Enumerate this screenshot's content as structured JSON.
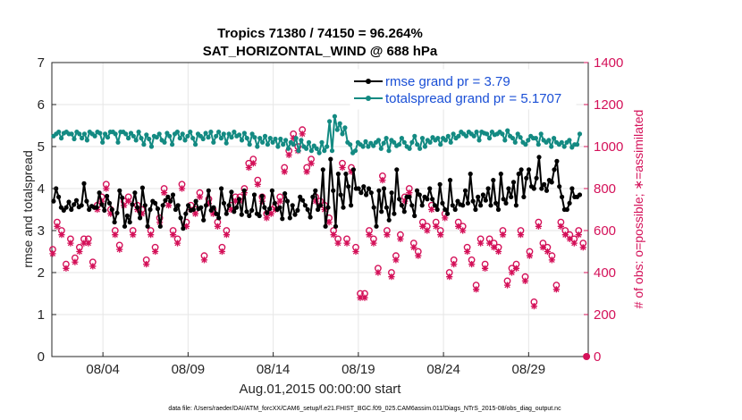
{
  "chart_data": {
    "type": "line",
    "title": "Tropics 71380 / 74150 = 96.264%",
    "subtitle": "SAT_HORIZONTAL_WIND @ 688 hPa",
    "xlabel": "Aug.01,2015 00:00:00 start",
    "ylabel": "rmse and totalspread",
    "ylabel_right": "# of obs: o=possible; ∗=assimilated",
    "x_ticks": [
      "08/04",
      "08/09",
      "08/14",
      "08/19",
      "08/24",
      "08/29"
    ],
    "x_tick_values": [
      3,
      8,
      13,
      18,
      23,
      28
    ],
    "xlim": [
      0,
      31.5
    ],
    "ylim": [
      0,
      7
    ],
    "ylim_right": [
      0,
      1400
    ],
    "y_ticks": [
      "0",
      "1",
      "2",
      "3",
      "4",
      "5",
      "6",
      "7"
    ],
    "y_ticks_right": [
      "0",
      "200",
      "400",
      "600",
      "800",
      "1000",
      "1200",
      "1400"
    ],
    "legend": [
      "rmse grand pr = 3.79",
      "totalspread grand pr = 5.1707"
    ],
    "legend_position": "top-right",
    "grid": true,
    "footer": "data file: /Users/raeder/DAI/ATM_forcXX/CAM6_setup/f.e21.FHIST_BGC.f09_025.CAM6assim.011/Diags_NTrS_2015-08/obs_diag_output.nc",
    "colors": {
      "rmse": "#000000",
      "spread": "#138a82",
      "obs": "#d41159",
      "legend_text": "#1a4fd6",
      "grid": "#e6e6e6"
    },
    "series": [
      {
        "name": "rmse",
        "values": [
          3.7,
          4.0,
          3.8,
          3.55,
          3.48,
          3.55,
          3.68,
          3.5,
          3.62,
          3.72,
          3.56,
          3.6,
          4.12,
          3.7,
          3.5,
          3.58,
          3.55,
          3.55,
          3.9,
          3.62,
          3.48,
          3.82,
          3.65,
          3.5,
          3.2,
          3.42,
          3.95,
          3.78,
          3.1,
          3.35,
          3.2,
          3.62,
          3.9,
          3.55,
          3.3,
          4.02,
          3.6,
          3.1,
          3.5,
          3.7,
          3.65,
          3.52,
          3.1,
          3.6,
          3.72,
          3.8,
          3.7,
          3.85,
          3.5,
          3.6,
          3.3,
          3.05,
          3.4,
          3.6,
          3.48,
          3.5,
          3.7,
          3.52,
          3.55,
          3.25,
          3.6,
          3.95,
          3.48,
          3.55,
          3.4,
          3.3,
          4.0,
          3.65,
          3.4,
          3.6,
          3.92,
          3.45,
          3.55,
          3.75,
          3.38,
          3.95,
          3.45,
          3.35,
          3.48,
          3.85,
          3.4,
          3.35,
          3.82,
          3.55,
          3.42,
          3.52,
          3.95,
          3.65,
          3.5,
          3.55,
          3.28,
          3.88,
          3.7,
          3.3,
          3.6,
          3.38,
          3.48,
          3.8,
          3.72,
          3.6,
          3.5,
          3.32,
          3.8,
          3.95,
          3.5,
          3.6,
          4.45,
          3.1,
          3.55,
          4.7,
          3.95,
          3.1,
          4.35,
          3.85,
          3.55,
          4.35,
          4.05,
          3.6,
          4.45,
          4.0,
          4.0,
          3.9,
          4.05,
          3.85,
          4.0,
          3.9,
          3.55,
          3.1,
          3.95,
          3.45,
          4.0,
          3.55,
          3.25,
          3.9,
          3.4,
          4.45,
          3.75,
          3.6,
          3.45,
          3.8,
          3.8,
          3.6,
          3.35,
          3.95,
          3.85,
          3.6,
          3.8,
          3.75,
          4.0,
          3.75,
          3.6,
          3.5,
          4.1,
          3.65,
          3.5,
          3.4,
          4.2,
          3.6,
          3.5,
          3.7,
          3.62,
          3.6,
          3.95,
          3.65,
          4.35,
          3.7,
          3.5,
          3.8,
          3.6,
          3.85,
          3.72,
          4.0,
          3.6,
          4.2,
          3.65,
          3.5,
          4.35,
          3.75,
          3.65,
          4.0,
          3.8,
          4.15,
          3.6,
          4.35,
          4.45,
          3.8,
          4.25,
          4.45,
          4.05,
          4.0,
          4.25,
          4.75,
          4.0,
          4.1,
          3.95,
          4.2,
          4.15,
          4.45,
          4.65,
          4.05,
          3.8,
          3.5,
          3.5,
          3.65,
          4.0,
          3.8,
          3.8,
          3.85
        ]
      },
      {
        "name": "totalspread",
        "values": [
          5.25,
          5.3,
          5.35,
          5.2,
          5.32,
          5.35,
          5.3,
          5.3,
          5.18,
          5.35,
          5.3,
          5.2,
          5.3,
          5.15,
          5.35,
          5.3,
          5.25,
          5.35,
          5.32,
          5.1,
          5.3,
          5.22,
          5.35,
          5.35,
          5.3,
          5.1,
          5.35,
          5.35,
          5.3,
          5.2,
          5.32,
          5.25,
          5.15,
          5.35,
          5.2,
          5.05,
          5.28,
          5.18,
          5.0,
          5.25,
          5.22,
          5.3,
          5.15,
          5.1,
          5.32,
          5.25,
          5.05,
          5.3,
          5.35,
          5.2,
          5.3,
          5.15,
          5.25,
          5.35,
          5.2,
          5.05,
          5.3,
          5.25,
          5.18,
          5.32,
          5.22,
          5.35,
          5.1,
          5.25,
          5.35,
          5.2,
          5.3,
          5.08,
          5.3,
          5.22,
          5.35,
          5.25,
          5.28,
          5.15,
          5.32,
          5.2,
          5.05,
          5.3,
          5.22,
          5.0,
          5.2,
          5.1,
          5.25,
          5.05,
          5.2,
          5.1,
          5.18,
          5.0,
          5.18,
          5.05,
          5.15,
          4.95,
          5.1,
          5.05,
          5.2,
          4.9,
          5.15,
          5.0,
          4.95,
          5.1,
          4.9,
          5.02,
          4.95,
          4.85,
          5.1,
          4.9,
          5.0,
          5.6,
          4.9,
          5.72,
          5.4,
          5.55,
          5.3,
          5.45,
          5.1,
          5.05,
          4.85,
          4.9,
          5.1,
          5.05,
          5.0,
          5.12,
          5.0,
          5.08,
          5.02,
          5.1,
          5.15,
          4.95,
          5.08,
          5.2,
          4.9,
          5.15,
          5.1,
          5.02,
          5.05,
          5.2,
          5.1,
          5.0,
          4.95,
          5.1,
          5.25,
          5.05,
          4.95,
          5.2,
          5.0,
          5.15,
          5.1,
          5.22,
          5.15,
          5.2,
          5.05,
          5.2,
          5.15,
          5.25,
          5.1,
          5.3,
          5.2,
          5.25,
          5.35,
          5.3,
          5.25,
          5.35,
          5.3,
          5.25,
          5.35,
          5.15,
          5.35,
          5.32,
          5.3,
          5.2,
          5.35,
          5.28,
          5.3,
          5.35,
          5.3,
          5.15,
          5.38,
          5.25,
          5.2,
          5.1,
          5.3,
          5.22,
          5.1,
          5.05,
          5.15,
          5.25,
          5.2,
          5.2,
          5.05,
          5.3,
          5.15,
          5.1,
          5.15,
          5.0,
          5.2,
          5.1,
          5.05,
          5.1,
          5.0,
          5.1,
          5.15,
          4.98,
          5.05,
          5.05,
          5.3
        ]
      },
      {
        "name": "obs_possible",
        "values": [
          510,
          640,
          600,
          440,
          560,
          470,
          520,
          560,
          560,
          450,
          720,
          760,
          820,
          700,
          600,
          530,
          740,
          760,
          600,
          720,
          700,
          460,
          600,
          520,
          660,
          800,
          740,
          600,
          560,
          820,
          640,
          720,
          700,
          780,
          480,
          750,
          700,
          640,
          520,
          600,
          720,
          760,
          760,
          800,
          920,
          940,
          840,
          760,
          680,
          700,
          720,
          760,
          900,
          980,
          1060,
          1000,
          1080,
          900,
          940,
          760,
          740,
          720,
          660,
          600,
          560,
          920,
          560,
          900,
          520,
          300,
          300,
          600,
          560,
          420,
          860,
          600,
          400,
          480,
          580,
          760,
          800,
          540,
          500,
          640,
          620,
          720,
          640,
          600,
          680,
          400,
          460,
          640,
          620,
          520,
          460,
          340,
          560,
          440,
          560,
          540,
          520,
          600,
          360,
          420,
          440,
          600,
          380,
          500,
          260,
          640,
          540,
          520,
          480,
          340,
          640,
          600,
          580,
          560,
          600,
          540
        ]
      },
      {
        "name": "obs_assimilated",
        "values": [
          490,
          620,
          580,
          420,
          540,
          450,
          500,
          540,
          540,
          430,
          700,
          740,
          800,
          680,
          580,
          510,
          720,
          740,
          580,
          700,
          680,
          440,
          580,
          500,
          640,
          780,
          720,
          580,
          540,
          800,
          620,
          700,
          680,
          760,
          460,
          730,
          680,
          620,
          500,
          580,
          700,
          740,
          740,
          780,
          900,
          920,
          820,
          740,
          660,
          680,
          700,
          740,
          880,
          960,
          1040,
          980,
          1060,
          880,
          920,
          740,
          720,
          700,
          640,
          580,
          540,
          900,
          540,
          880,
          500,
          280,
          280,
          580,
          540,
          400,
          840,
          580,
          380,
          460,
          560,
          740,
          780,
          520,
          480,
          620,
          600,
          700,
          620,
          580,
          660,
          380,
          440,
          620,
          600,
          500,
          440,
          320,
          540,
          420,
          540,
          520,
          500,
          580,
          340,
          400,
          420,
          580,
          360,
          480,
          240,
          620,
          520,
          500,
          460,
          320,
          620,
          580,
          560,
          540,
          580,
          520
        ]
      }
    ],
    "obs_final": {
      "x": 31.4,
      "value": 0
    }
  }
}
